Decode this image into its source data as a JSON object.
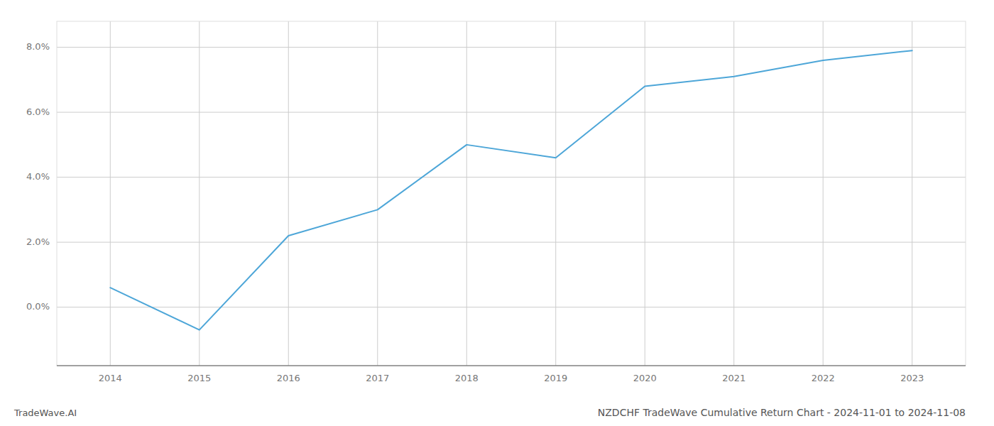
{
  "chart_data": {
    "type": "line",
    "title": "NZDCHF TradeWave Cumulative Return Chart - 2024-11-01 to 2024-11-08",
    "annotations": [
      "TradeWave.AI"
    ],
    "x": [
      2014,
      2015,
      2016,
      2017,
      2018,
      2019,
      2020,
      2021,
      2022,
      2023
    ],
    "values": [
      0.006,
      -0.007,
      0.022,
      0.03,
      0.05,
      0.046,
      0.068,
      0.071,
      0.076,
      0.079
    ],
    "color": "#4da6d8",
    "xlim": [
      2013.4,
      2023.6
    ],
    "xticks": [
      2014,
      2015,
      2016,
      2017,
      2018,
      2019,
      2020,
      2021,
      2022,
      2023
    ],
    "ylim": [
      -0.018,
      0.088
    ],
    "yticks": [
      {
        "value": 0.0,
        "label": "0.0%"
      },
      {
        "value": 0.02,
        "label": "2.0%"
      },
      {
        "value": 0.04,
        "label": "4.0%"
      },
      {
        "value": 0.06,
        "label": "6.0%"
      },
      {
        "value": 0.08,
        "label": "8.0%"
      }
    ],
    "grid": true
  }
}
